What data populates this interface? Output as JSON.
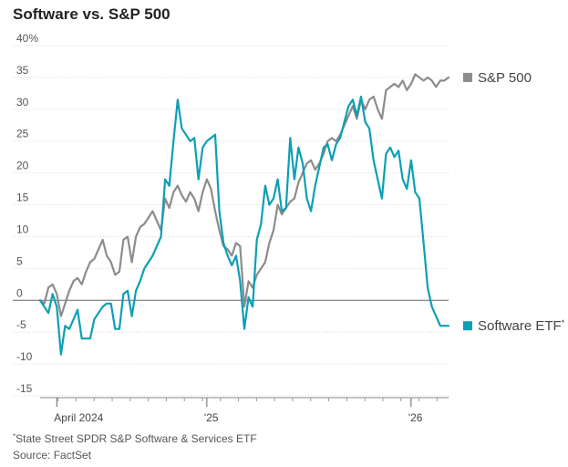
{
  "chart_data": {
    "type": "line",
    "title": "Software vs. S&P 500",
    "ylabel": "",
    "xlabel": "",
    "y_unit_suffix": "%",
    "ylim": [
      -15,
      40
    ],
    "yticks": [
      40,
      35,
      30,
      25,
      20,
      15,
      10,
      5,
      0,
      -5,
      -10,
      -15
    ],
    "x_range_weeks": [
      0,
      98
    ],
    "x_labels": [
      {
        "week": 4,
        "label": "April 2024"
      },
      {
        "week": 40,
        "label": "'25"
      },
      {
        "week": 89,
        "label": "'26"
      }
    ],
    "series": [
      {
        "name": "S&P 500",
        "color": "#8c8c8c",
        "values": [
          0.0,
          -0.5,
          2.0,
          2.5,
          1.0,
          -2.5,
          -0.5,
          1.5,
          3.0,
          3.5,
          2.5,
          4.5,
          6.0,
          6.5,
          8.0,
          9.5,
          7.0,
          6.0,
          4.0,
          4.5,
          9.5,
          10.0,
          6.0,
          10.0,
          11.5,
          12.0,
          13.0,
          14.0,
          12.5,
          11.0,
          16.0,
          14.5,
          17.0,
          18.0,
          16.5,
          15.5,
          17.0,
          16.0,
          14.0,
          17.0,
          19.0,
          17.5,
          14.0,
          11.0,
          8.5,
          8.0,
          7.0,
          9.0,
          8.5,
          -1.0,
          3.0,
          2.0,
          4.0,
          5.0,
          6.0,
          9.0,
          11.0,
          15.0,
          13.5,
          14.5,
          15.5,
          16.0,
          18.5,
          20.0,
          21.5,
          22.0,
          20.5,
          21.5,
          23.0,
          25.0,
          25.5,
          25.0,
          26.0,
          27.5,
          29.0,
          30.5,
          28.5,
          31.5,
          30.0,
          31.5,
          32.0,
          30.0,
          28.5,
          33.0,
          33.5,
          34.0,
          33.5,
          34.5,
          33.0,
          34.0,
          35.5,
          35.0,
          34.5,
          35.0,
          34.5,
          33.5,
          34.5,
          34.5,
          35.0
        ]
      },
      {
        "name": "Software ETF",
        "footnote_marker": "*",
        "color": "#0c9fb5",
        "values": [
          0.0,
          -1.0,
          -2.0,
          1.0,
          -1.0,
          -8.5,
          -4.0,
          -4.5,
          -3.0,
          -1.5,
          -6.0,
          -6.0,
          -6.0,
          -3.0,
          -2.0,
          -1.0,
          -0.5,
          -0.5,
          -4.5,
          -4.5,
          1.0,
          1.5,
          -2.5,
          1.5,
          3.0,
          5.0,
          6.0,
          7.0,
          8.5,
          10.0,
          19.0,
          18.0,
          25.0,
          31.5,
          27.0,
          26.0,
          25.0,
          25.5,
          19.0,
          24.0,
          25.0,
          25.5,
          26.0,
          14.0,
          9.0,
          7.0,
          5.5,
          7.0,
          3.0,
          -4.5,
          0.5,
          -1.0,
          9.5,
          12.0,
          18.0,
          15.0,
          16.0,
          19.0,
          14.0,
          14.5,
          25.5,
          19.0,
          24.0,
          21.5,
          16.0,
          14.0,
          18.0,
          21.0,
          24.0,
          24.5,
          22.0,
          24.5,
          25.5,
          28.0,
          30.5,
          31.5,
          29.0,
          32.0,
          28.0,
          27.0,
          22.0,
          19.0,
          16.0,
          23.0,
          24.0,
          22.5,
          23.5,
          19.0,
          17.5,
          22.0,
          17.0,
          16.0,
          9.0,
          2.0,
          -1.0,
          -2.5,
          -4.0,
          -4.0,
          -4.0
        ]
      }
    ]
  },
  "footnote": {
    "marker": "*",
    "text": "State Street SPDR S&P Software & Services ETF"
  },
  "source": "Source: FactSet"
}
